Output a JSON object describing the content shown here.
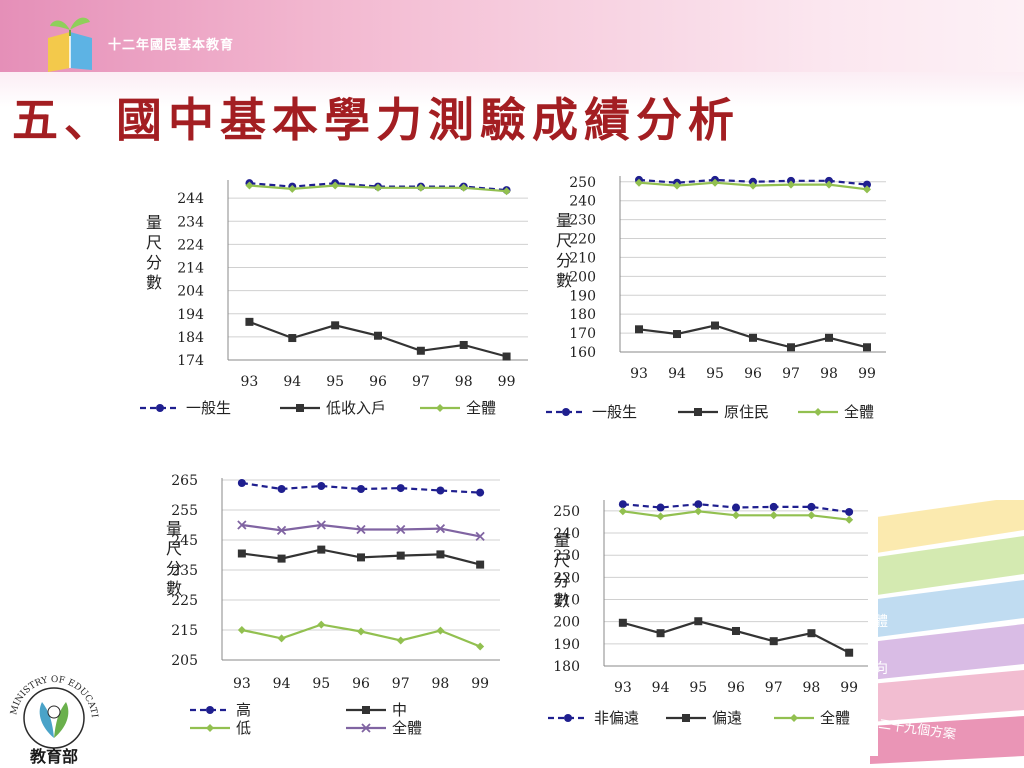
{
  "header": {
    "org_text": "十二年國民基本教育"
  },
  "title": "五、國中基本學力測驗成績分析",
  "ribbon_labels": [
    "體",
    "向",
    "二十九個方案"
  ],
  "seal": {
    "text": "MINISTRY OF EDUCATION",
    "name": "教育部"
  },
  "colors": {
    "title": "#a31e22",
    "series_navy": "#1f1f8f",
    "series_dark": "#333333",
    "series_green": "#92c050",
    "series_purple": "#8064a2"
  },
  "chart_data": [
    {
      "type": "line",
      "ylabel": "量尺分數",
      "categories": [
        "93",
        "94",
        "95",
        "96",
        "97",
        "98",
        "99"
      ],
      "yticks": [
        174,
        184,
        194,
        204,
        214,
        224,
        234,
        244
      ],
      "ylim": [
        174,
        251
      ],
      "grid": true,
      "legend": "bottom",
      "series": [
        {
          "name": "一般生",
          "values": [
            250.5,
            249,
            250.5,
            249,
            249,
            249,
            247.5
          ],
          "color": "#1f1f8f",
          "style": "dashed",
          "marker": "circle"
        },
        {
          "name": "低收入戶",
          "values": [
            190.5,
            183.5,
            189,
            184.5,
            178,
            180.5,
            175.5
          ],
          "color": "#333333",
          "style": "solid",
          "marker": "square"
        },
        {
          "name": "全體",
          "values": [
            249.5,
            248,
            249.5,
            248.5,
            248.5,
            248.5,
            247
          ],
          "color": "#92c050",
          "style": "solid",
          "marker": "diamond"
        }
      ]
    },
    {
      "type": "line",
      "ylabel": "量尺分數",
      "categories": [
        "93",
        "94",
        "95",
        "96",
        "97",
        "98",
        "99"
      ],
      "yticks": [
        160,
        170,
        180,
        190,
        200,
        210,
        220,
        230,
        240,
        250
      ],
      "ylim": [
        160,
        252
      ],
      "grid": true,
      "legend": "bottom",
      "series": [
        {
          "name": "一般生",
          "values": [
            251,
            249.5,
            251,
            250,
            250.5,
            250.5,
            248.5
          ],
          "color": "#1f1f8f",
          "style": "dashed",
          "marker": "circle"
        },
        {
          "name": "原住民",
          "values": [
            172,
            169.5,
            174,
            167.5,
            162.5,
            167.5,
            162.5
          ],
          "color": "#333333",
          "style": "solid",
          "marker": "square"
        },
        {
          "name": "全體",
          "values": [
            249.5,
            248,
            249.5,
            248,
            248.5,
            248.5,
            246
          ],
          "color": "#92c050",
          "style": "solid",
          "marker": "diamond"
        }
      ]
    },
    {
      "type": "line",
      "ylabel": "量尺分數",
      "categories": [
        "93",
        "94",
        "95",
        "96",
        "97",
        "98",
        "99"
      ],
      "yticks": [
        205,
        215,
        225,
        235,
        245,
        255,
        265
      ],
      "ylim": [
        205,
        265
      ],
      "grid": true,
      "legend": "bottom",
      "series": [
        {
          "name": "高",
          "values": [
            264,
            262,
            263,
            262,
            262.3,
            261.5,
            260.8
          ],
          "color": "#1f1f8f",
          "style": "dashed",
          "marker": "circle"
        },
        {
          "name": "中",
          "values": [
            240.5,
            238.8,
            241.8,
            239.2,
            239.8,
            240.2,
            236.8
          ],
          "color": "#333333",
          "style": "solid",
          "marker": "square"
        },
        {
          "name": "低",
          "values": [
            215,
            212.2,
            216.8,
            214.5,
            211.5,
            214.8,
            209.5
          ],
          "color": "#92c050",
          "style": "solid",
          "marker": "diamond"
        },
        {
          "name": "全體",
          "values": [
            250,
            248.2,
            250,
            248.5,
            248.5,
            248.8,
            246.2
          ],
          "color": "#8064a2",
          "style": "solid",
          "marker": "x"
        }
      ]
    },
    {
      "type": "line",
      "ylabel": "量尺分數",
      "categories": [
        "93",
        "94",
        "95",
        "96",
        "97",
        "98",
        "99"
      ],
      "yticks": [
        180,
        190,
        200,
        210,
        220,
        230,
        240,
        250
      ],
      "ylim": [
        180,
        254
      ],
      "grid": true,
      "legend": "bottom",
      "series": [
        {
          "name": "非偏遠",
          "values": [
            253,
            251.5,
            253,
            251.5,
            251.8,
            251.8,
            249.5
          ],
          "color": "#1f1f8f",
          "style": "dashed",
          "marker": "circle"
        },
        {
          "name": "偏遠",
          "values": [
            199.5,
            194.8,
            200.2,
            195.8,
            191.2,
            194.8,
            186
          ],
          "color": "#333333",
          "style": "solid",
          "marker": "square"
        },
        {
          "name": "全體",
          "values": [
            249.8,
            247.5,
            249.8,
            248,
            248,
            248,
            246
          ],
          "color": "#92c050",
          "style": "solid",
          "marker": "diamond"
        }
      ]
    }
  ]
}
